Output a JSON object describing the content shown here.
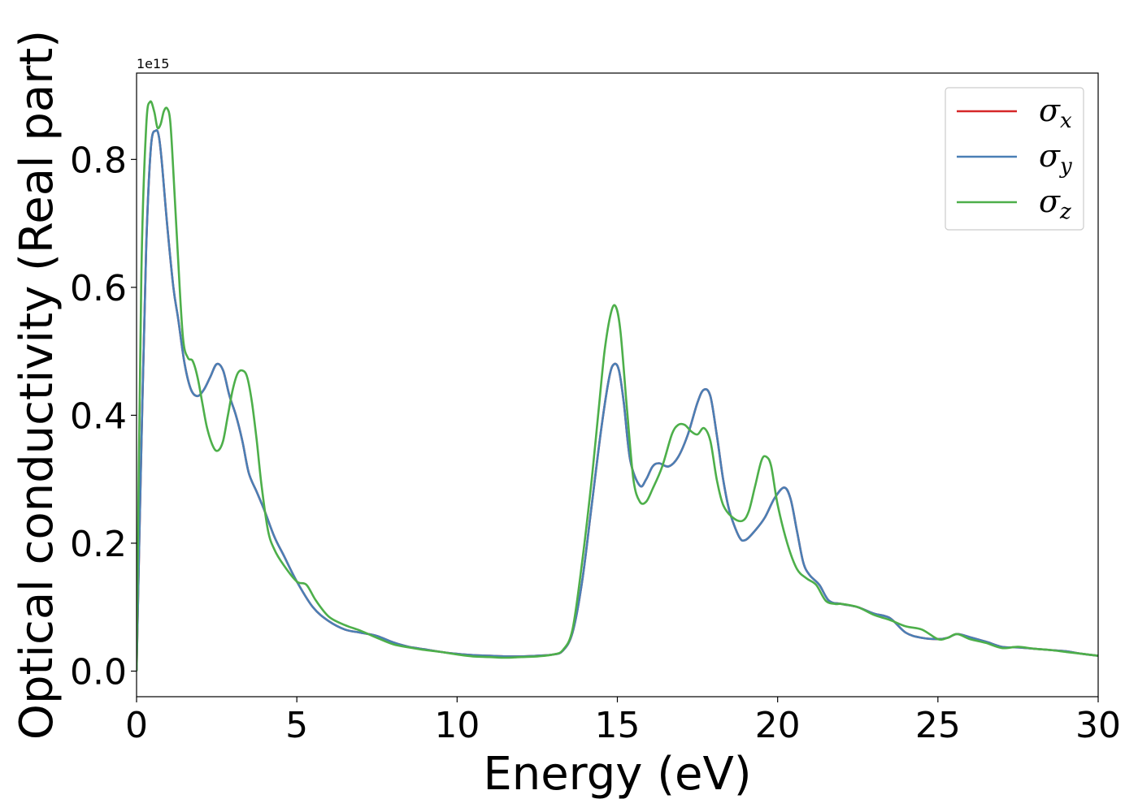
{
  "chart_data": {
    "type": "line",
    "title": "",
    "xlabel": "Energy (eV)",
    "ylabel": "Optical conductivity (Real part)",
    "y_offset_label": "1e15",
    "xlim": [
      0,
      30
    ],
    "ylim": [
      -0.04,
      0.935
    ],
    "xticks": [
      0,
      5,
      10,
      15,
      20,
      25,
      30
    ],
    "xtick_labels": [
      "0",
      "5",
      "10",
      "15",
      "20",
      "25",
      "30"
    ],
    "yticks": [
      0.0,
      0.2,
      0.4,
      0.6,
      0.8
    ],
    "ytick_labels": [
      "0.0",
      "0.2",
      "0.4",
      "0.6",
      "0.8"
    ],
    "grid": false,
    "legend_position": "top-right",
    "series": [
      {
        "name": "σx",
        "legend_symbol": "σ",
        "legend_subscript": "x",
        "color": "#d62728",
        "x": [
          0,
          0.15,
          0.3,
          0.45,
          0.6,
          0.7,
          0.8,
          0.95,
          1.15,
          1.3,
          1.5,
          1.7,
          1.9,
          2.1,
          2.3,
          2.5,
          2.7,
          2.9,
          3.1,
          3.3,
          3.5,
          3.75,
          4.0,
          4.3,
          4.6,
          5.0,
          5.5,
          6.0,
          6.5,
          7.0,
          7.5,
          8.0,
          8.5,
          9.0,
          9.5,
          10.0,
          10.5,
          11.0,
          11.5,
          12.0,
          12.5,
          13.0,
          13.3,
          13.6,
          13.9,
          14.2,
          14.5,
          14.75,
          14.9,
          15.05,
          15.2,
          15.4,
          15.7,
          15.9,
          16.1,
          16.3,
          16.6,
          16.9,
          17.2,
          17.5,
          17.7,
          17.9,
          18.1,
          18.3,
          18.5,
          18.8,
          19.0,
          19.3,
          19.6,
          19.9,
          20.2,
          20.4,
          20.6,
          20.8,
          21.0,
          21.3,
          21.6,
          22.0,
          22.5,
          23.0,
          23.5,
          24.0,
          24.5,
          25.0,
          25.3,
          25.6,
          26.0,
          26.5,
          27.0,
          27.5,
          28.0,
          28.5,
          29.0,
          29.5,
          30.0
        ],
        "y": [
          0.0,
          0.35,
          0.66,
          0.82,
          0.845,
          0.835,
          0.79,
          0.7,
          0.6,
          0.55,
          0.48,
          0.44,
          0.43,
          0.44,
          0.46,
          0.48,
          0.47,
          0.43,
          0.4,
          0.36,
          0.31,
          0.28,
          0.25,
          0.21,
          0.18,
          0.14,
          0.1,
          0.078,
          0.065,
          0.06,
          0.055,
          0.045,
          0.038,
          0.034,
          0.03,
          0.027,
          0.025,
          0.024,
          0.023,
          0.023,
          0.024,
          0.026,
          0.032,
          0.06,
          0.14,
          0.26,
          0.38,
          0.46,
          0.48,
          0.47,
          0.42,
          0.33,
          0.29,
          0.3,
          0.32,
          0.325,
          0.32,
          0.335,
          0.37,
          0.42,
          0.44,
          0.43,
          0.37,
          0.3,
          0.25,
          0.21,
          0.205,
          0.22,
          0.24,
          0.27,
          0.287,
          0.27,
          0.22,
          0.17,
          0.15,
          0.135,
          0.11,
          0.105,
          0.1,
          0.09,
          0.083,
          0.06,
          0.052,
          0.05,
          0.052,
          0.058,
          0.053,
          0.046,
          0.038,
          0.037,
          0.035,
          0.033,
          0.031,
          0.027,
          0.024
        ]
      },
      {
        "name": "σy",
        "legend_symbol": "σ",
        "legend_subscript": "y",
        "color": "#4a7fb5",
        "x": [
          0,
          0.15,
          0.3,
          0.45,
          0.6,
          0.7,
          0.8,
          0.95,
          1.15,
          1.3,
          1.5,
          1.7,
          1.9,
          2.1,
          2.3,
          2.5,
          2.7,
          2.9,
          3.1,
          3.3,
          3.5,
          3.75,
          4.0,
          4.3,
          4.6,
          5.0,
          5.5,
          6.0,
          6.5,
          7.0,
          7.5,
          8.0,
          8.5,
          9.0,
          9.5,
          10.0,
          10.5,
          11.0,
          11.5,
          12.0,
          12.5,
          13.0,
          13.3,
          13.6,
          13.9,
          14.2,
          14.5,
          14.75,
          14.9,
          15.05,
          15.2,
          15.4,
          15.7,
          15.9,
          16.1,
          16.3,
          16.6,
          16.9,
          17.2,
          17.5,
          17.7,
          17.9,
          18.1,
          18.3,
          18.5,
          18.8,
          19.0,
          19.3,
          19.6,
          19.9,
          20.2,
          20.4,
          20.6,
          20.8,
          21.0,
          21.3,
          21.6,
          22.0,
          22.5,
          23.0,
          23.5,
          24.0,
          24.5,
          25.0,
          25.3,
          25.6,
          26.0,
          26.5,
          27.0,
          27.5,
          28.0,
          28.5,
          29.0,
          29.5,
          30.0
        ],
        "y": [
          0.0,
          0.35,
          0.66,
          0.82,
          0.845,
          0.835,
          0.79,
          0.7,
          0.6,
          0.55,
          0.48,
          0.44,
          0.43,
          0.44,
          0.46,
          0.48,
          0.47,
          0.43,
          0.4,
          0.36,
          0.31,
          0.28,
          0.25,
          0.21,
          0.18,
          0.14,
          0.1,
          0.078,
          0.065,
          0.06,
          0.055,
          0.045,
          0.038,
          0.034,
          0.03,
          0.027,
          0.025,
          0.024,
          0.023,
          0.023,
          0.024,
          0.026,
          0.032,
          0.06,
          0.14,
          0.26,
          0.38,
          0.46,
          0.48,
          0.47,
          0.42,
          0.33,
          0.29,
          0.3,
          0.32,
          0.325,
          0.32,
          0.335,
          0.37,
          0.42,
          0.44,
          0.43,
          0.37,
          0.3,
          0.25,
          0.21,
          0.205,
          0.22,
          0.24,
          0.27,
          0.287,
          0.27,
          0.22,
          0.17,
          0.15,
          0.135,
          0.11,
          0.105,
          0.1,
          0.09,
          0.083,
          0.06,
          0.052,
          0.05,
          0.052,
          0.058,
          0.053,
          0.046,
          0.038,
          0.037,
          0.035,
          0.033,
          0.031,
          0.027,
          0.024
        ]
      },
      {
        "name": "σz",
        "legend_symbol": "σ",
        "legend_subscript": "z",
        "color": "#4daf4a",
        "x": [
          0,
          0.15,
          0.3,
          0.42,
          0.55,
          0.65,
          0.75,
          0.85,
          0.95,
          1.05,
          1.15,
          1.3,
          1.45,
          1.6,
          1.75,
          1.9,
          2.05,
          2.2,
          2.4,
          2.55,
          2.7,
          2.85,
          3.0,
          3.15,
          3.3,
          3.45,
          3.6,
          3.75,
          3.9,
          4.1,
          4.3,
          4.6,
          5.0,
          5.3,
          5.6,
          6.0,
          6.5,
          7.0,
          7.5,
          8.0,
          8.5,
          9.0,
          9.5,
          10.0,
          10.5,
          11.0,
          11.5,
          12.0,
          12.5,
          13.0,
          13.3,
          13.6,
          13.9,
          14.2,
          14.4,
          14.6,
          14.8,
          14.95,
          15.1,
          15.3,
          15.5,
          15.7,
          15.9,
          16.1,
          16.4,
          16.7,
          16.9,
          17.1,
          17.3,
          17.5,
          17.7,
          17.9,
          18.1,
          18.3,
          18.6,
          18.9,
          19.1,
          19.3,
          19.5,
          19.65,
          19.8,
          20.0,
          20.3,
          20.6,
          20.9,
          21.2,
          21.5,
          21.8,
          22.0,
          22.5,
          23.0,
          23.5,
          24.0,
          24.5,
          25.0,
          25.3,
          25.6,
          26.0,
          26.5,
          27.0,
          27.5,
          28.0,
          28.5,
          29.0,
          29.5,
          30.0
        ],
        "y": [
          0.0,
          0.62,
          0.85,
          0.89,
          0.875,
          0.85,
          0.855,
          0.875,
          0.88,
          0.86,
          0.78,
          0.64,
          0.52,
          0.49,
          0.485,
          0.46,
          0.42,
          0.38,
          0.35,
          0.345,
          0.36,
          0.4,
          0.44,
          0.465,
          0.47,
          0.46,
          0.42,
          0.36,
          0.29,
          0.22,
          0.19,
          0.165,
          0.14,
          0.135,
          0.11,
          0.085,
          0.072,
          0.063,
          0.052,
          0.042,
          0.037,
          0.033,
          0.03,
          0.026,
          0.023,
          0.022,
          0.021,
          0.022,
          0.023,
          0.026,
          0.033,
          0.065,
          0.17,
          0.3,
          0.4,
          0.5,
          0.56,
          0.57,
          0.53,
          0.41,
          0.3,
          0.265,
          0.265,
          0.285,
          0.32,
          0.37,
          0.385,
          0.385,
          0.375,
          0.37,
          0.38,
          0.36,
          0.3,
          0.26,
          0.24,
          0.235,
          0.25,
          0.29,
          0.33,
          0.335,
          0.32,
          0.26,
          0.2,
          0.16,
          0.145,
          0.135,
          0.11,
          0.105,
          0.105,
          0.1,
          0.088,
          0.08,
          0.07,
          0.065,
          0.05,
          0.052,
          0.058,
          0.05,
          0.044,
          0.036,
          0.038,
          0.035,
          0.033,
          0.03,
          0.027,
          0.024
        ]
      }
    ]
  }
}
